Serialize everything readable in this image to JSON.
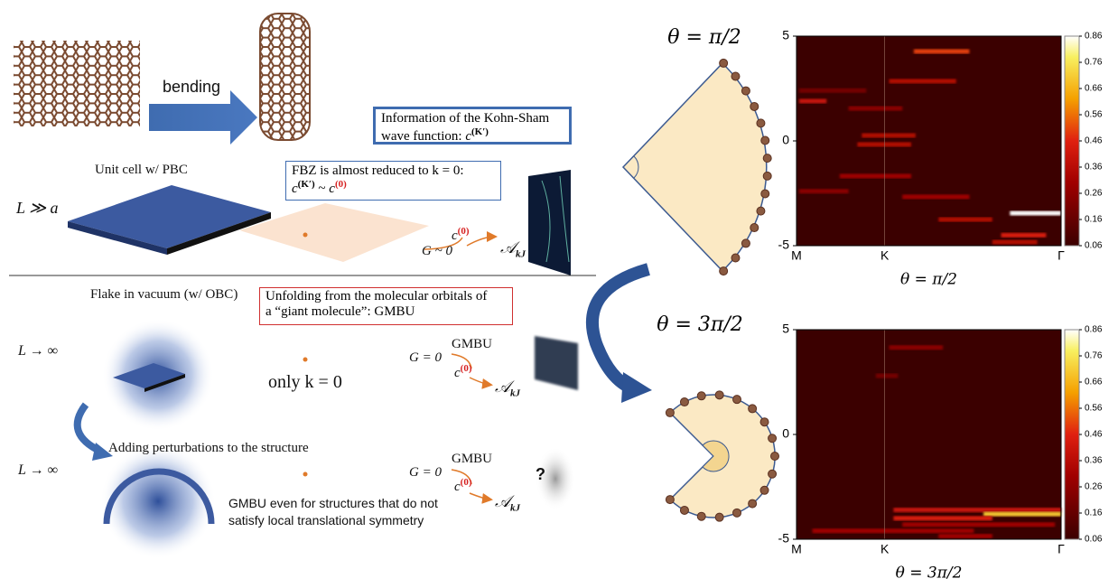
{
  "top": {
    "bending": "bending",
    "ks_box": {
      "text": "Information of the Kohn-Sham",
      "text2": "wave function:",
      "c": "c",
      "sup": "(K′)"
    },
    "unit_cell": "Unit cell w/ PBC",
    "L_a": "L ≫ a",
    "fbz_box": {
      "line1": "FBZ is almost reduced to k = 0:",
      "c1": "c",
      "sup1": "(K′)",
      "sim": "~",
      "c2": "c",
      "sup2": "(0)"
    },
    "c0": {
      "c": "c",
      "sup": "(0)"
    },
    "G": "G ~ 0",
    "A": {
      "base": "𝒜",
      "sub": "kJ"
    }
  },
  "bottom": {
    "flake": "Flake in vacuum (w/ OBC)",
    "unfold_box": {
      "line1": "Unfolding from the molecular orbitals of",
      "line2": "a “giant molecule”: GMBU"
    },
    "row1": {
      "L": "L → ∞",
      "only": "only k = 0",
      "G": "G = 0",
      "gmbu": "GMBU",
      "c": "c",
      "sup": "(0)",
      "A": "𝒜",
      "sub": "kJ"
    },
    "adding": "Adding perturbations to the structure",
    "row2": {
      "L": "L → ∞",
      "G": "G = 0",
      "gmbu": "GMBU",
      "c": "c",
      "sup": "(0)",
      "A": "𝒜",
      "sub": "kJ",
      "q": "?"
    },
    "gmbu_note": {
      "line1": "GMBU even for structures that do not",
      "line2": "satisfy local translational symmetry"
    }
  },
  "theta_labels": [
    "θ = π/2",
    "θ = 3π/2"
  ],
  "chart_data": [
    {
      "type": "heatmap",
      "xlabel": "θ = π/2",
      "xlim": [
        0,
        3
      ],
      "xticks": [
        {
          "value": 0,
          "label": "M"
        },
        {
          "value": 1,
          "label": "K"
        },
        {
          "value": 3,
          "label": "Γ"
        }
      ],
      "ylim": [
        -5,
        5
      ],
      "yticks": [
        -5,
        0,
        5
      ],
      "clim": [
        0.06,
        0.86
      ],
      "cticks": [
        0.06,
        0.16,
        0.26,
        0.36,
        0.46,
        0.56,
        0.66,
        0.76,
        0.86
      ],
      "streaks": [
        {
          "x0": 1.33,
          "x1": 1.96,
          "y": 4.27,
          "value": 0.5
        },
        {
          "x0": 1.05,
          "x1": 1.81,
          "y": 2.85,
          "value": 0.35
        },
        {
          "x0": 0.03,
          "x1": 0.79,
          "y": 2.4,
          "value": 0.2
        },
        {
          "x0": 0.03,
          "x1": 0.34,
          "y": 1.9,
          "value": 0.4
        },
        {
          "x0": 0.59,
          "x1": 1.2,
          "y": 1.55,
          "value": 0.25
        },
        {
          "x0": 0.74,
          "x1": 1.35,
          "y": 0.26,
          "value": 0.35
        },
        {
          "x0": 0.69,
          "x1": 1.3,
          "y": -0.17,
          "value": 0.35
        },
        {
          "x0": 0.49,
          "x1": 1.3,
          "y": -1.68,
          "value": 0.3
        },
        {
          "x0": 0.03,
          "x1": 0.59,
          "y": -2.4,
          "value": 0.25
        },
        {
          "x0": 1.2,
          "x1": 1.96,
          "y": -2.67,
          "value": 0.3
        },
        {
          "x0": 2.42,
          "x1": 3,
          "y": -3.45,
          "value": 0.86
        },
        {
          "x0": 1.61,
          "x1": 2.22,
          "y": -3.75,
          "value": 0.35
        },
        {
          "x0": 2.32,
          "x1": 2.83,
          "y": -4.5,
          "value": 0.45
        },
        {
          "x0": 2.22,
          "x1": 2.73,
          "y": -4.83,
          "value": 0.35
        }
      ]
    },
    {
      "type": "heatmap",
      "xlabel": "θ = 3π/2",
      "xlim": [
        0,
        3
      ],
      "xticks": [
        {
          "value": 0,
          "label": "M"
        },
        {
          "value": 1,
          "label": "K"
        },
        {
          "value": 3,
          "label": "Γ"
        }
      ],
      "ylim": [
        -5,
        5
      ],
      "yticks": [
        -5,
        0,
        5
      ],
      "clim": [
        0.06,
        0.86
      ],
      "cticks": [
        0.06,
        0.16,
        0.26,
        0.36,
        0.46,
        0.56,
        0.66,
        0.76,
        0.86
      ],
      "streaks": [
        {
          "x0": 1.05,
          "x1": 1.66,
          "y": 4.15,
          "value": 0.25
        },
        {
          "x0": 0.9,
          "x1": 1.15,
          "y": 2.8,
          "value": 0.2
        },
        {
          "x0": 1.1,
          "x1": 3,
          "y": -3.6,
          "value": 0.4
        },
        {
          "x0": 2.12,
          "x1": 3,
          "y": -3.8,
          "value": 0.7
        },
        {
          "x0": 1.1,
          "x1": 2.22,
          "y": -4.0,
          "value": 0.45
        },
        {
          "x0": 1.2,
          "x1": 2.93,
          "y": -4.3,
          "value": 0.3
        },
        {
          "x0": 0.18,
          "x1": 2.01,
          "y": -4.6,
          "value": 0.3
        },
        {
          "x0": 1.61,
          "x1": 2.22,
          "y": -4.85,
          "value": 0.3
        }
      ]
    }
  ]
}
